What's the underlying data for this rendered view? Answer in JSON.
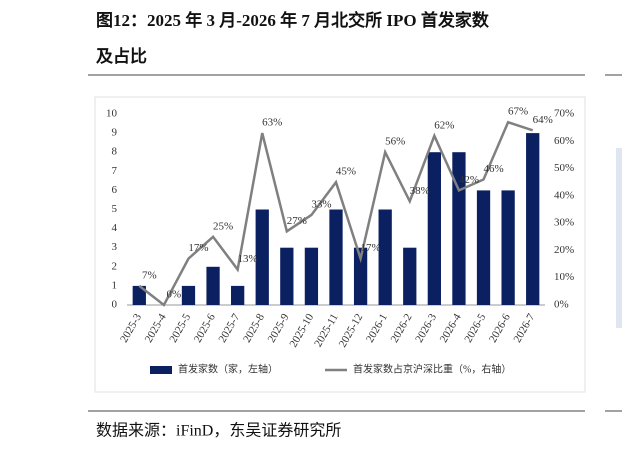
{
  "title": "图12：2025 年 3 月-2026 年 7 月北交所 IPO 首发家数及占比",
  "source": "数据来源：iFinD，东吴证券研究所",
  "chart_data": {
    "type": "bar-line",
    "categories": [
      "2025-3",
      "2025-4",
      "2025-5",
      "2025-6",
      "2025-7",
      "2025-8",
      "2025-9",
      "2025-10",
      "2025-11",
      "2025-12",
      "2026-1",
      "2026-2",
      "2026-3",
      "2026-4",
      "2026-5",
      "2026-6",
      "2026-7"
    ],
    "series": [
      {
        "name": "首发家数（家，左轴）",
        "type": "bar",
        "color": "#0b2060",
        "values": [
          1,
          0,
          1,
          2,
          1,
          5,
          3,
          3,
          5,
          3,
          5,
          3,
          8,
          8,
          6,
          6,
          9
        ]
      },
      {
        "name": "首发家数占京沪深比重（%，右轴）",
        "type": "line",
        "axis": "y2",
        "color": "#808080",
        "values": [
          7,
          0,
          17,
          25,
          13,
          63,
          27,
          33,
          45,
          17,
          56,
          38,
          62,
          42,
          46,
          67,
          64
        ],
        "value_labels": [
          "7%",
          "0%",
          "17%",
          "25%",
          "13%",
          "63%",
          "27%",
          "33%",
          "45%",
          "17%",
          "56%",
          "38%",
          "62%",
          "42%",
          "46%",
          "67%",
          "64%"
        ]
      }
    ],
    "ylim": [
      0,
      10
    ],
    "yticks": [
      0,
      1,
      2,
      3,
      4,
      5,
      6,
      7,
      8,
      9,
      10
    ],
    "y2lim": [
      0,
      70
    ],
    "y2ticks": [
      {
        "value": 0,
        "label": "0%"
      },
      {
        "value": 10,
        "label": "10%"
      },
      {
        "value": 20,
        "label": "20%"
      },
      {
        "value": 30,
        "label": "30%"
      },
      {
        "value": 40,
        "label": "40%"
      },
      {
        "value": 50,
        "label": "50%"
      },
      {
        "value": 60,
        "label": "60%"
      },
      {
        "value": 70,
        "label": "70%"
      }
    ],
    "legend": "bottom"
  }
}
